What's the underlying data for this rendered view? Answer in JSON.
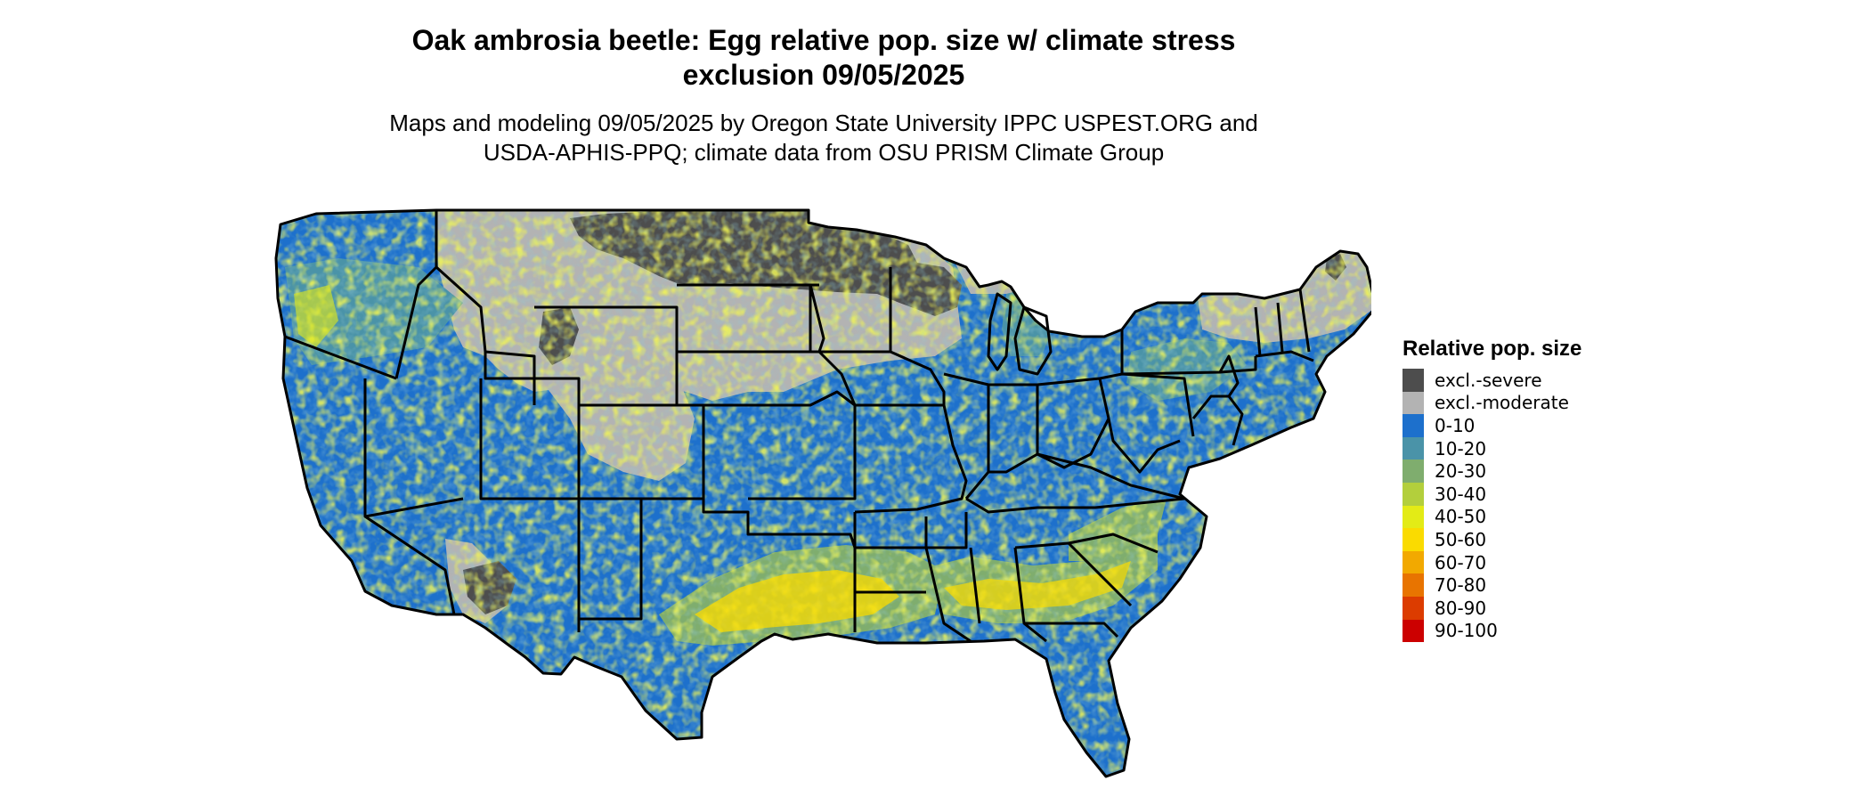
{
  "title": "Oak ambrosia beetle: Egg relative pop. size w/ climate stress\nexclusion 09/05/2025",
  "subtitle": "Maps and modeling 09/05/2025 by Oregon State University IPPC USPEST.ORG and\nUSDA-APHIS-PPQ; climate data from OSU PRISM Climate Group",
  "legend": {
    "title": "Relative pop. size",
    "items": [
      {
        "label": "excl.-severe",
        "color": "#4d4d4d"
      },
      {
        "label": "excl.-moderate",
        "color": "#b3b3b3"
      },
      {
        "label": "0-10",
        "color": "#1d70cc"
      },
      {
        "label": "10-20",
        "color": "#4a93a8"
      },
      {
        "label": "20-30",
        "color": "#7fad6e"
      },
      {
        "label": "30-40",
        "color": "#b3cf3c"
      },
      {
        "label": "40-50",
        "color": "#e3eb16"
      },
      {
        "label": "50-60",
        "color": "#fadb00"
      },
      {
        "label": "60-70",
        "color": "#f2a900"
      },
      {
        "label": "70-80",
        "color": "#e87400"
      },
      {
        "label": "80-90",
        "color": "#dc3c00"
      },
      {
        "label": "90-100",
        "color": "#cc0000"
      }
    ]
  },
  "map": {
    "region": "Contiguous United States",
    "colors": {
      "severe": "#4d4d4d",
      "moderate": "#b3b3b3",
      "low": "#1d70cc",
      "mid": "#4a93a8",
      "green": "#7fad6e",
      "lime": "#b3cf3c",
      "yellow": "#e3eb16",
      "gold": "#fadb00",
      "border": "#000000"
    }
  }
}
